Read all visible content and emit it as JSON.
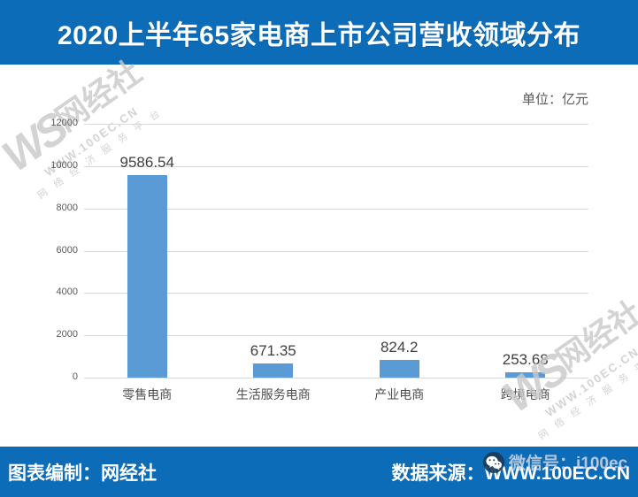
{
  "title_bar": {
    "title": "2020上半年65家电商上市公司营收领域分布",
    "bg_color": "#0d6cb8"
  },
  "unit_label": "单位：亿元",
  "chart_data": {
    "type": "bar",
    "title": "2020上半年65家电商上市公司营收领域分布",
    "categories": [
      "零售电商",
      "生活服务电商",
      "产业电商",
      "跨境电商"
    ],
    "values": [
      9586.54,
      671.35,
      824.2,
      253.68
    ],
    "value_labels": [
      "9586.54",
      "671.35",
      "824.2",
      "253.68"
    ],
    "yticks": [
      0,
      2000,
      4000,
      6000,
      8000,
      10000,
      12000
    ],
    "ylim": [
      0,
      12000
    ],
    "xlabel": "",
    "ylabel": "",
    "unit": "亿元",
    "grid": true,
    "legend": "none",
    "bar_color": "#5b9bd5",
    "gridline_color": "#d9d9d9"
  },
  "watermark": {
    "logo_prefix": "WS",
    "logo_text": "网经社",
    "url": "WWW.100EC.CN",
    "tagline": "网 络 经 济 服 务 平 台"
  },
  "footer": {
    "left": "图表编制：网经社",
    "right": "数据来源：WWW.100EC.CN",
    "wechat_overlay": "微信号：i100ec",
    "bg_color": "#0d6cb8"
  }
}
